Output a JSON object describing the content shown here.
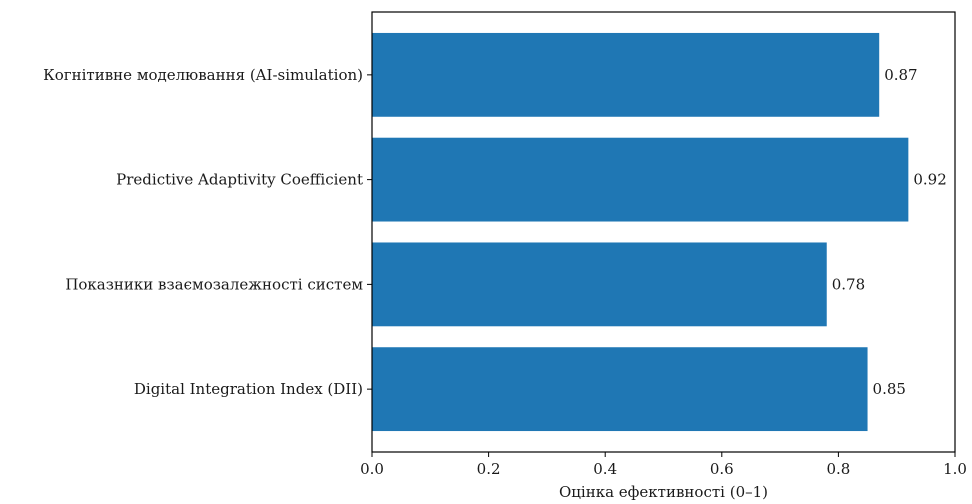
{
  "chart_data": {
    "type": "bar",
    "orientation": "horizontal",
    "categories": [
      "Когнітивне моделювання (AI-simulation)",
      "Predictive Adaptivity Coefficient",
      "Показники взаємозалежності систем",
      "Digital Integration Index (DII)"
    ],
    "values": [
      0.87,
      0.92,
      0.78,
      0.85
    ],
    "value_labels": [
      "0.87",
      "0.92",
      "0.78",
      "0.85"
    ],
    "title": "",
    "xlabel": "Оцінка ефективності (0–1)",
    "ylabel": "",
    "xlim": [
      0,
      1.0
    ],
    "x_ticks": [
      0.0,
      0.2,
      0.4,
      0.6,
      0.8,
      1.0
    ],
    "x_tick_labels": [
      "0.0",
      "0.2",
      "0.4",
      "0.6",
      "0.8",
      "1.0"
    ],
    "grid": false,
    "legend": "none",
    "bar_color": "#1f77b4",
    "axis_color": "#000000"
  }
}
